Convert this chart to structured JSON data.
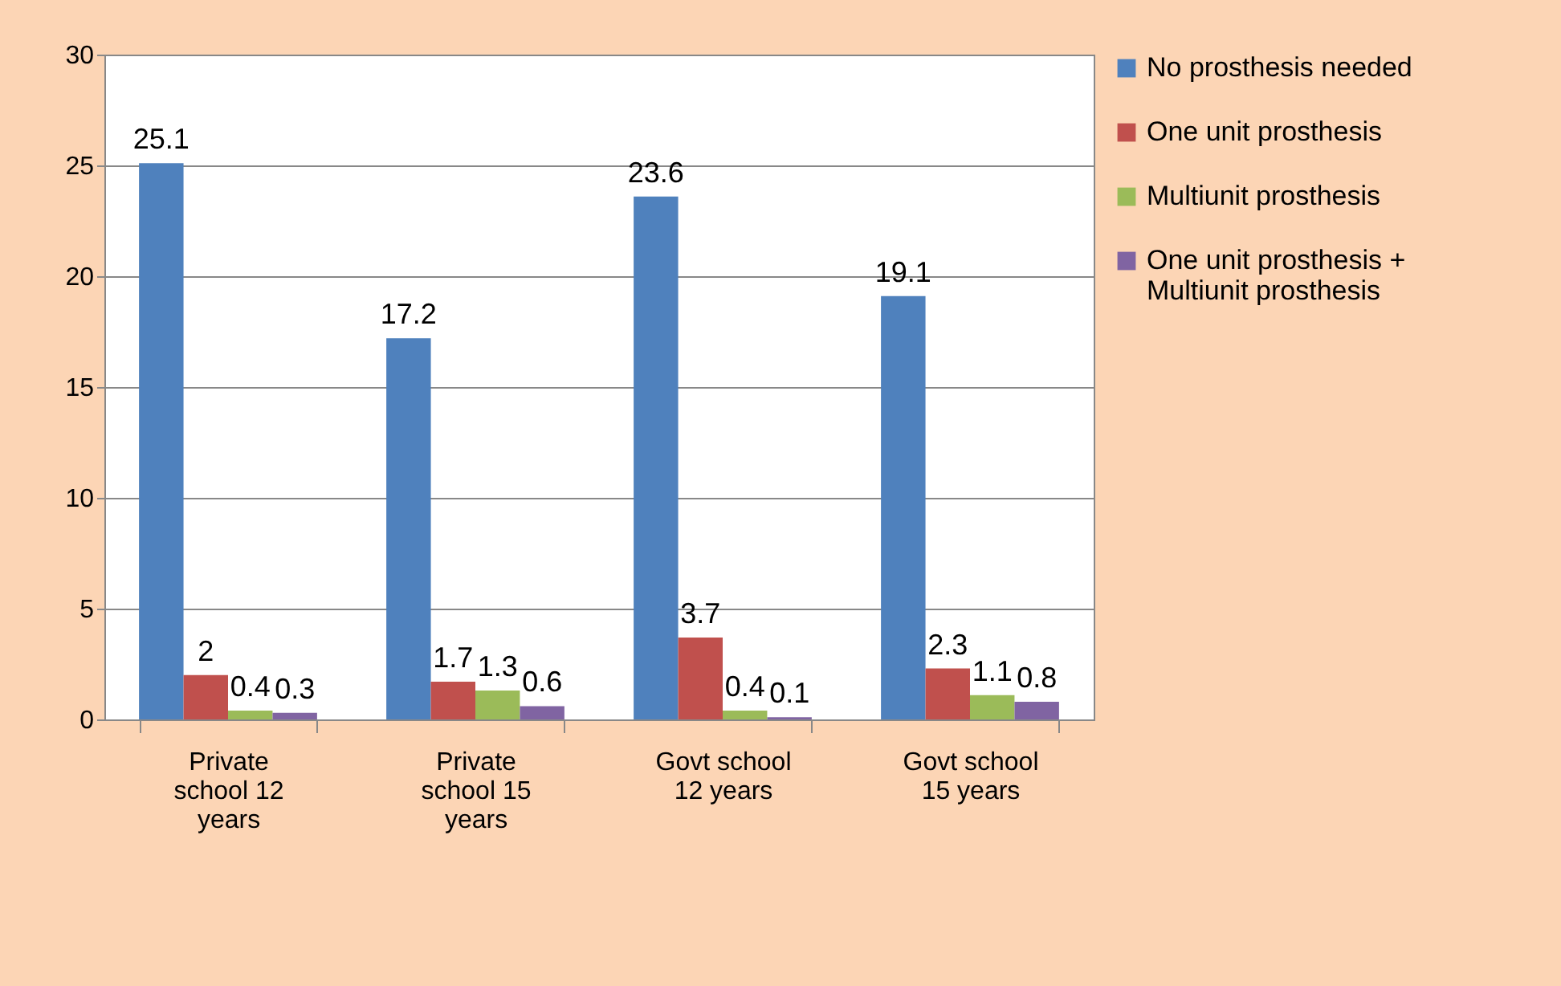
{
  "chart_data": {
    "type": "bar",
    "categories": [
      "Private school 12 years",
      "Private school 15 years",
      "Govt school 12 years",
      "Govt school 15 years"
    ],
    "series": [
      {
        "name": "No prosthesis needed",
        "color": "#4f81bd",
        "values": [
          25.1,
          17.2,
          23.6,
          19.1
        ]
      },
      {
        "name": "One unit prosthesis",
        "color": "#c0504d",
        "values": [
          2,
          1.7,
          3.7,
          2.3
        ]
      },
      {
        "name": "Multiunit prosthesis",
        "color": "#9bbb59",
        "values": [
          0.4,
          1.3,
          0.4,
          1.1
        ]
      },
      {
        "name": "One unit prosthesis + Multiunit prosthesis",
        "color": "#8064a2",
        "values": [
          0.3,
          0.6,
          0.1,
          0.8
        ]
      }
    ],
    "ylim": [
      0,
      30
    ],
    "yticks": [
      0,
      5,
      10,
      15,
      20,
      25,
      30
    ],
    "grid": "y",
    "legend": "right",
    "data_labels": true
  }
}
